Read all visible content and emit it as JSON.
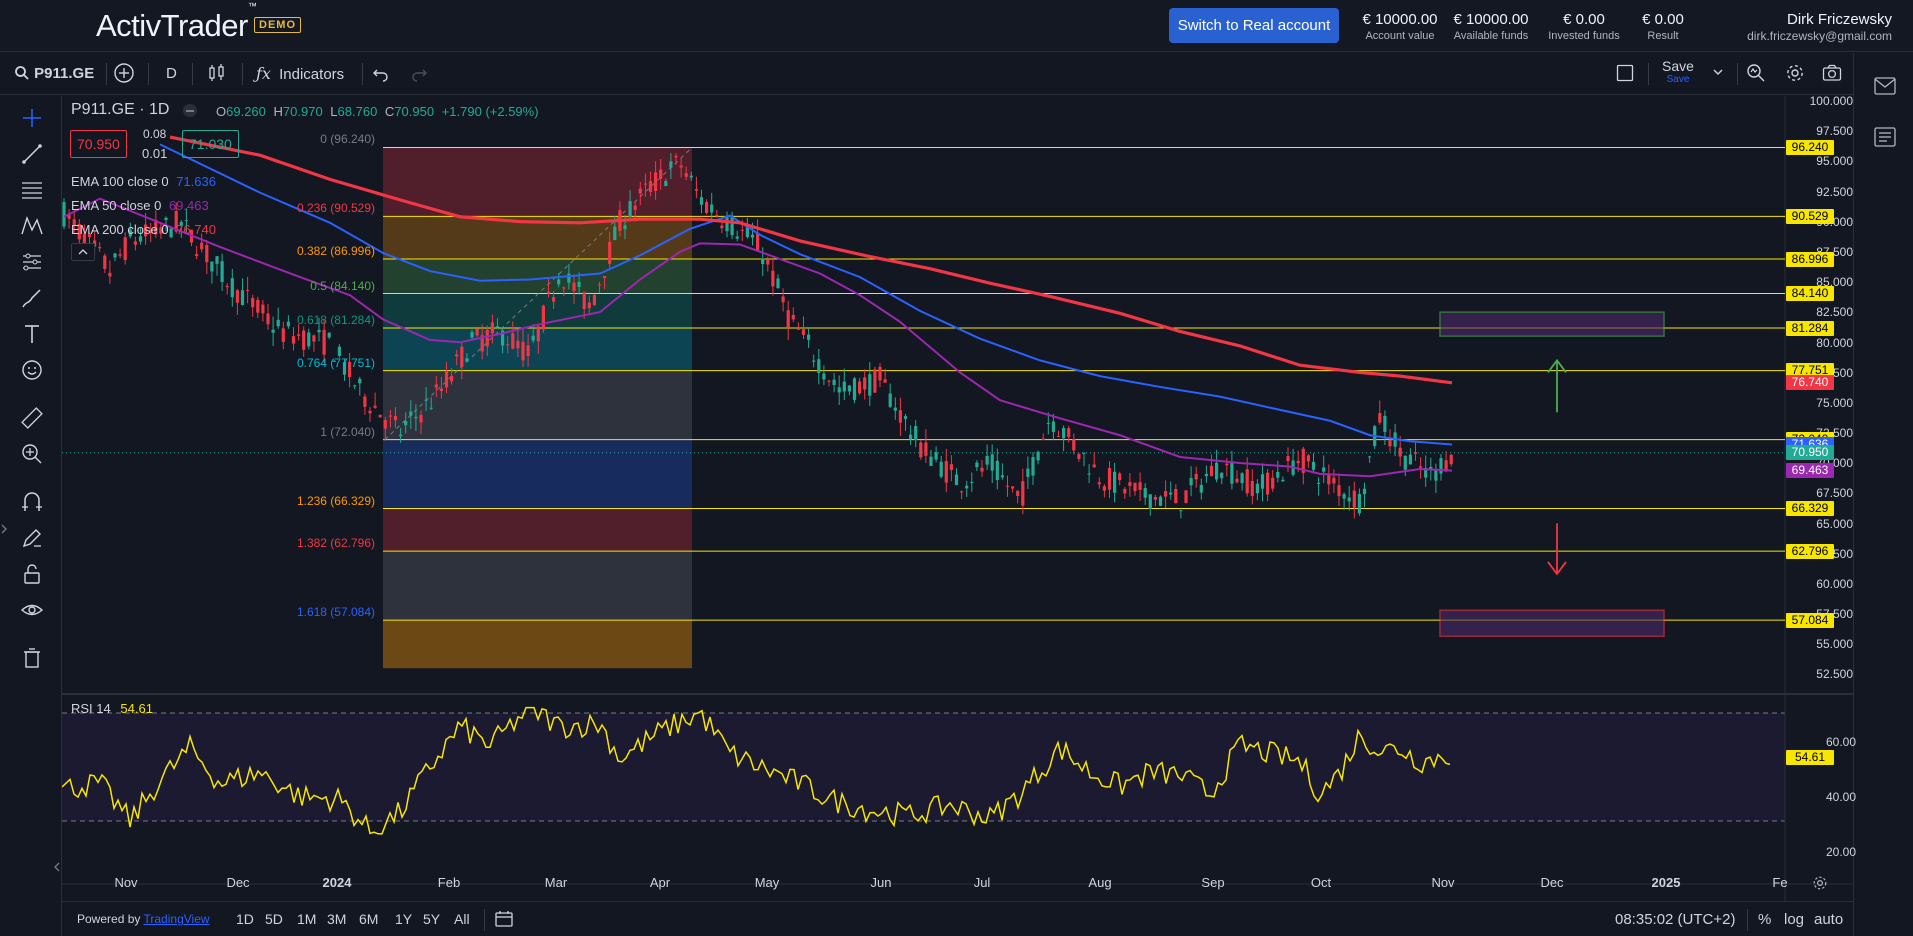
{
  "header": {
    "logo": "ActivTrader",
    "logo_tm": "™",
    "demo_badge": "DEMO",
    "real_button": "Switch to Real account",
    "metrics": [
      {
        "value": "€ 10000.00",
        "label": "Account value"
      },
      {
        "value": "€ 10000.00",
        "label": "Available funds"
      },
      {
        "value": "€ 0.00",
        "label": "Invested funds"
      },
      {
        "value": "€ 0.00",
        "label": "Result"
      }
    ],
    "user_name": "Dirk Friczewsky",
    "user_email": "dirk.friczewsky@gmail.com"
  },
  "toolbar": {
    "symbol": "P911.GE",
    "interval": "D",
    "indicators": "Indicators",
    "save": "Save",
    "save_sub": "Save"
  },
  "legend": {
    "title": "P911.GE · 1D",
    "o_label": "O",
    "o_value": "69.260",
    "h_label": "H",
    "h_value": "70.970",
    "l_label": "L",
    "l_value": "68.760",
    "c_label": "C",
    "c_value": "70.950",
    "change": "+1.790 (+2.59%)",
    "bid": "70.950",
    "spread_top": "0.08",
    "spread_bottom": "0.01",
    "ask": "71.030",
    "ema100_label": "EMA 100 close 0",
    "ema100_value": "71.636",
    "ema50_label": "EMA 50 close 0",
    "ema50_value": "69.463",
    "ema200_label": "EMA 200 close 0",
    "ema200_value": "76.740"
  },
  "fib_labels": [
    {
      "text": "0 (96.240)",
      "color": "#787b86",
      "level": 96.24
    },
    {
      "text": "0.236 (90.529)",
      "color": "#f23645",
      "level": 90.529
    },
    {
      "text": "0.382 (86.996)",
      "color": "#ff9800",
      "level": 86.996
    },
    {
      "text": "0.5 (84.140)",
      "color": "#4caf50",
      "level": 84.14
    },
    {
      "text": "0.618 (81.284)",
      "color": "#089981",
      "level": 81.284
    },
    {
      "text": "0.764 (77.751)",
      "color": "#00bcd4",
      "level": 77.751
    },
    {
      "text": "1 (72.040)",
      "color": "#787b86",
      "level": 72.04
    },
    {
      "text": "1.236 (66.329)",
      "color": "#ff9800",
      "level": 66.329
    },
    {
      "text": "1.382 (62.796)",
      "color": "#f23645",
      "level": 62.796
    },
    {
      "text": "1.618 (57.084)",
      "color": "#2962ff",
      "level": 57.084
    }
  ],
  "price_axis": [
    "100.000",
    "97.500",
    "95.000",
    "92.500",
    "90.000",
    "87.500",
    "85.000",
    "82.500",
    "80.000",
    "77.500",
    "75.000",
    "72.500",
    "70.000",
    "67.500",
    "65.000",
    "62.500",
    "60.000",
    "57.500",
    "55.000",
    "52.500"
  ],
  "price_tags": [
    {
      "text": "96.240",
      "bg": "#f7e600",
      "fg": "#000"
    },
    {
      "text": "90.529",
      "bg": "#f7e600",
      "fg": "#000"
    },
    {
      "text": "86.996",
      "bg": "#f7e600",
      "fg": "#000"
    },
    {
      "text": "84.140",
      "bg": "#f7e600",
      "fg": "#000"
    },
    {
      "text": "81.284",
      "bg": "#f7e600",
      "fg": "#000"
    },
    {
      "text": "77.751",
      "bg": "#f7e600",
      "fg": "#000"
    },
    {
      "text": "76.740",
      "bg": "#f23645",
      "fg": "#fff"
    },
    {
      "text": "72.040",
      "bg": "#f7e600",
      "fg": "#000"
    },
    {
      "text": "71.636",
      "bg": "#2962ff",
      "fg": "#fff"
    },
    {
      "text": "70.950",
      "bg": "#22ab94",
      "fg": "#fff"
    },
    {
      "text": "69.463",
      "bg": "#9c27b0",
      "fg": "#fff"
    },
    {
      "text": "66.329",
      "bg": "#f7e600",
      "fg": "#000"
    },
    {
      "text": "62.796",
      "bg": "#f7e600",
      "fg": "#000"
    },
    {
      "text": "57.084",
      "bg": "#f7e600",
      "fg": "#000"
    }
  ],
  "rsi": {
    "label": "RSI",
    "period": "14",
    "value": "54.61",
    "axis": [
      "60.00",
      "40.00",
      "20.00"
    ],
    "tag": "54.61"
  },
  "time_axis": [
    "Nov",
    "Dec",
    "2024",
    "Feb",
    "Mar",
    "Apr",
    "May",
    "Jun",
    "Jul",
    "Aug",
    "Sep",
    "Oct",
    "Nov",
    "Dec",
    "2025",
    "Fe"
  ],
  "bottom": {
    "powered": "Powered by",
    "powered_link": "TradingView",
    "ranges": [
      "1D",
      "5D",
      "1M",
      "3M",
      "6M",
      "1Y",
      "5Y",
      "All"
    ],
    "time": "08:35:02 (UTC+2)",
    "pct": "%",
    "log": "log",
    "auto": "auto"
  },
  "colors": {
    "up": "#22ab94",
    "down": "#f23645",
    "ema100": "#2962ff",
    "ema50": "#9c27b0",
    "ema200": "#f23645",
    "fib_line": "#f7e600",
    "rsi": "#f7e600",
    "accent": "#2962d0"
  }
}
